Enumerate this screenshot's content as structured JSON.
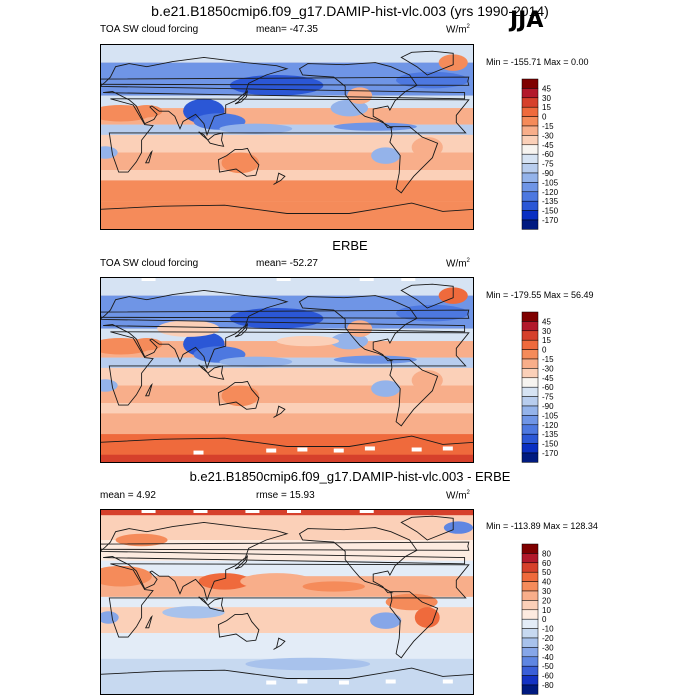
{
  "header": {
    "title": "b.e21.B1850cmip6.f09_g17.DAMIP-hist-vlc.003 (yrs 1990-2014)",
    "season": "JJA"
  },
  "panels": [
    {
      "id": "model",
      "title": "",
      "field": "TOA SW cloud forcing",
      "stat": "mean= -47.35",
      "unit": "W/m",
      "unit_sup": "2",
      "minmax": "Min = -155.71  Max =    0.00",
      "colorbar": [
        "45",
        "30",
        "15",
        "0",
        "-15",
        "-30",
        "-45",
        "-60",
        "-75",
        "-90",
        "-105",
        "-120",
        "-135",
        "-150",
        "-170"
      ]
    },
    {
      "id": "obs",
      "title": "ERBE",
      "field": "TOA SW cloud forcing",
      "stat": "mean= -52.27",
      "unit": "W/m",
      "unit_sup": "2",
      "minmax": "Min = -179.55  Max =  56.49",
      "colorbar": [
        "45",
        "30",
        "15",
        "0",
        "-15",
        "-30",
        "-45",
        "-60",
        "-75",
        "-90",
        "-105",
        "-120",
        "-135",
        "-150",
        "-170"
      ]
    },
    {
      "id": "diff",
      "title": "b.e21.B1850cmip6.f09_g17.DAMIP-hist-vlc.003 - ERBE",
      "field": "mean =   4.92",
      "stat": "rmse =  15.93",
      "unit": "W/m",
      "unit_sup": "2",
      "minmax": "Min = -113.89  Max = 128.34",
      "colorbar": [
        "80",
        "60",
        "50",
        "40",
        "30",
        "20",
        "10",
        "0",
        "-10",
        "-20",
        "-30",
        "-40",
        "-50",
        "-60",
        "-80"
      ]
    }
  ],
  "colors": {
    "abs_scale": [
      "#7f0000",
      "#b2182b",
      "#d6402b",
      "#ef6a3c",
      "#f58b5a",
      "#f8ae8a",
      "#fbd0b8",
      "#f7f4f0",
      "#d6e3f3",
      "#b8cdee",
      "#94b3ea",
      "#6f95e6",
      "#4d78e0",
      "#2b57d6",
      "#0a2fc2",
      "#001a80"
    ],
    "diff_scale": [
      "#7f0000",
      "#b2182b",
      "#d6402b",
      "#ef6a3c",
      "#f58b5a",
      "#f8ae8a",
      "#fbd0b8",
      "#fdebe0",
      "#e3ecf7",
      "#c7d9f0",
      "#a8c2ec",
      "#86a6e8",
      "#5f86e2",
      "#3a5fd8",
      "#1433c4",
      "#001a80"
    ]
  }
}
